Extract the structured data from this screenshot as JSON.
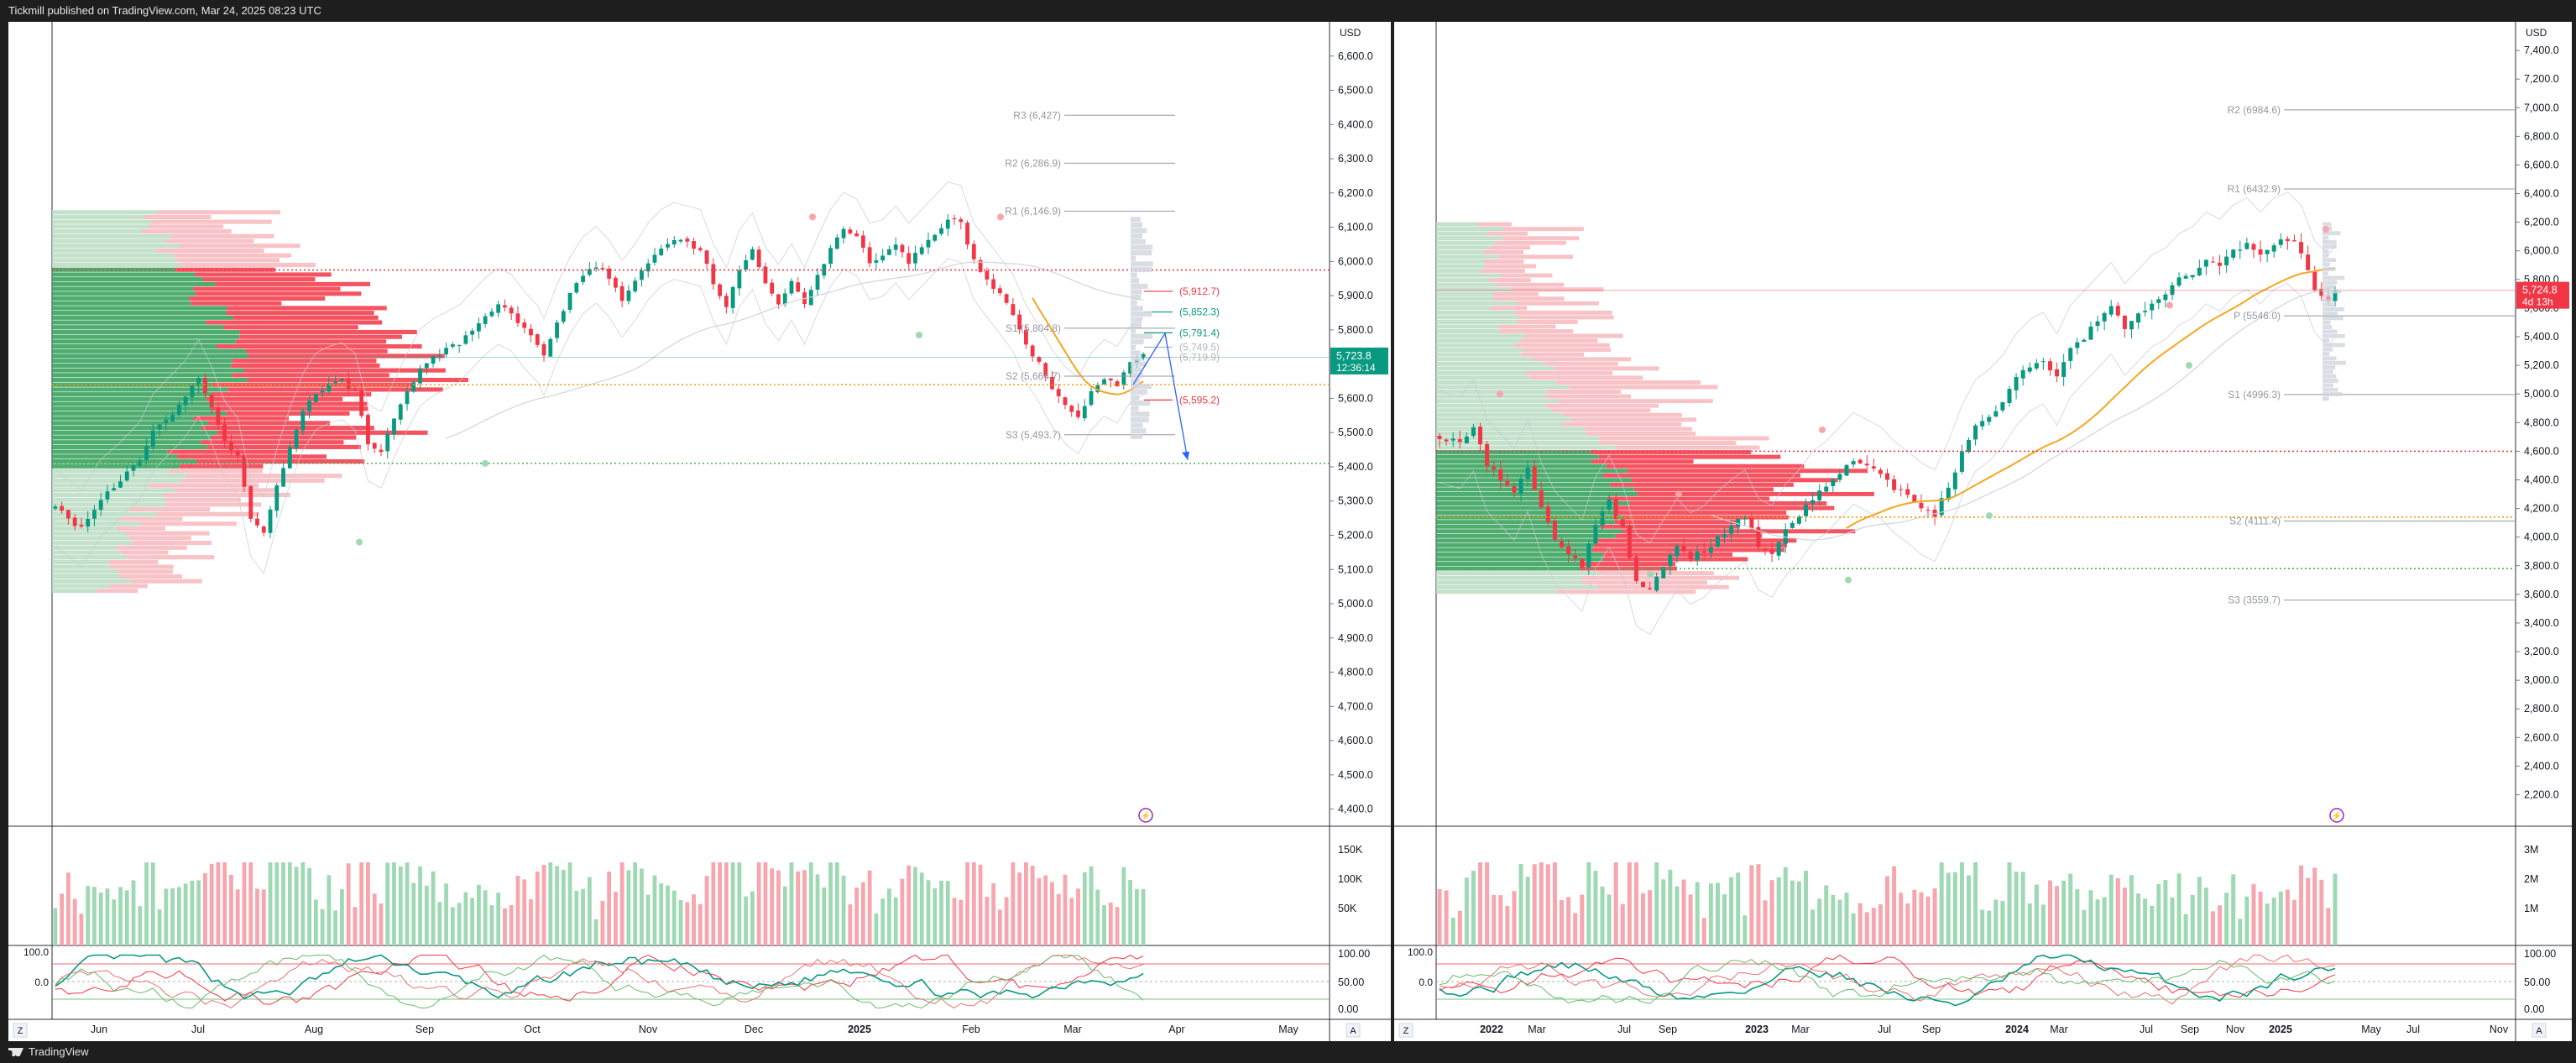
{
  "header": {
    "publisher_text": "Tickmill published on TradingView.com, Mar 24, 2025 08:23 UTC"
  },
  "footer": {
    "brand": "TradingView"
  },
  "panels": {
    "left": {
      "currency": "USD",
      "price_badge": {
        "price": "5,723.8",
        "countdown": "12:36:14",
        "color": "#089981"
      },
      "x_ticks": [
        "Jun",
        "Jul",
        "Aug",
        "Sep",
        "Oct",
        "Nov",
        "Dec",
        "2025",
        "Feb",
        "Mar",
        "Apr",
        "May"
      ],
      "corner_left": "Z",
      "corner_right": "A",
      "volume_ticks": [
        "150K",
        "100K",
        "50K"
      ],
      "osc_ticks": [
        "100.00",
        "50.00",
        "0.00"
      ],
      "osc_left_labels": [
        "100.0",
        "0.0"
      ]
    },
    "right": {
      "currency": "USD",
      "price_badge": {
        "price": "5,724.8",
        "countdown": "4d 13h",
        "color": "#f23645"
      },
      "x_ticks": [
        "2022",
        "Mar",
        "Jul",
        "Sep",
        "2023",
        "Mar",
        "Jul",
        "Sep",
        "2024",
        "Mar",
        "Jul",
        "Sep",
        "Nov",
        "2025",
        "May",
        "Jul",
        "Nov"
      ],
      "corner_left": "Z",
      "corner_right": "A",
      "volume_ticks": [
        "3M",
        "2M",
        "1M"
      ],
      "osc_ticks": [
        "100.00",
        "50.00",
        "0.00"
      ],
      "osc_left_labels": [
        "100.0",
        "0.0"
      ]
    }
  },
  "chart_data": [
    {
      "type": "candlestick",
      "panel": "left",
      "timeframe": "daily",
      "y_axis_label": "USD",
      "ylim": [
        4350,
        6700
      ],
      "y_ticks": [
        "6,600.0",
        "6,500.0",
        "6,400.0",
        "6,300.0",
        "6,200.0",
        "6,100.0",
        "6,000.0",
        "5,900.0",
        "5,800.0",
        "5,700.0",
        "5,600.0",
        "5,500.0",
        "5,400.0",
        "5,300.0",
        "5,200.0",
        "5,100.0",
        "5,000.0",
        "4,900.0",
        "4,800.0",
        "4,700.0",
        "4,600.0",
        "4,500.0",
        "4,400.0"
      ],
      "x_ticks": [
        "Jun",
        "Jul",
        "Aug",
        "Sep",
        "Oct",
        "Nov",
        "Dec",
        "2025",
        "Feb",
        "Mar",
        "Apr",
        "May"
      ],
      "last_price": 5723.8,
      "pivot_levels": [
        {
          "label": "R3 (6,427)",
          "value": 6427
        },
        {
          "label": "R2 (6,286.9)",
          "value": 6286.9
        },
        {
          "label": "R1 (6,146.9)",
          "value": 6146.9
        },
        {
          "label": "S1 (5,804.8)",
          "value": 5804.8
        },
        {
          "label": "S2 (5,664.7)",
          "value": 5664.7
        },
        {
          "label": "S3 (5,493.7)",
          "value": 5493.7
        }
      ],
      "level_labels": [
        {
          "label": "(5,912.7)",
          "value": 5912.7,
          "color": "#f23645"
        },
        {
          "label": "(5,852.3)",
          "value": 5852.3,
          "color": "#089981"
        },
        {
          "label": "(5,791.4)",
          "value": 5791.4,
          "color": "#089981"
        },
        {
          "label": "(5,749.5)",
          "value": 5749.5,
          "color": "#b2b5be"
        },
        {
          "label": "(5,719.9)",
          "value": 5719.9,
          "color": "#b2b5be"
        },
        {
          "label": "(5,595.2)",
          "value": 5595.2,
          "color": "#f23645"
        }
      ],
      "horizontal_lines": [
        {
          "value": 5975,
          "color": "#f23645",
          "style": "dotted"
        },
        {
          "value": 5640,
          "color": "#ff9800",
          "style": "dotted"
        },
        {
          "value": 5410,
          "color": "#4caf50",
          "style": "dotted"
        },
        {
          "value": 5720,
          "color": "#089981",
          "style": "solid"
        }
      ],
      "price_path": [
        [
          0,
          5280
        ],
        [
          4,
          5220
        ],
        [
          7,
          5310
        ],
        [
          10,
          5360
        ],
        [
          13,
          5420
        ],
        [
          15,
          5500
        ],
        [
          18,
          5560
        ],
        [
          20,
          5600
        ],
        [
          22,
          5660
        ],
        [
          24,
          5580
        ],
        [
          26,
          5480
        ],
        [
          28,
          5430
        ],
        [
          30,
          5250
        ],
        [
          32,
          5200
        ],
        [
          34,
          5340
        ],
        [
          36,
          5460
        ],
        [
          38,
          5560
        ],
        [
          40,
          5620
        ],
        [
          42,
          5640
        ],
        [
          44,
          5650
        ],
        [
          46,
          5620
        ],
        [
          48,
          5470
        ],
        [
          50,
          5450
        ],
        [
          52,
          5540
        ],
        [
          54,
          5620
        ],
        [
          56,
          5690
        ],
        [
          58,
          5720
        ],
        [
          60,
          5740
        ],
        [
          62,
          5760
        ],
        [
          64,
          5800
        ],
        [
          66,
          5840
        ],
        [
          68,
          5870
        ],
        [
          70,
          5850
        ],
        [
          72,
          5800
        ],
        [
          74,
          5760
        ],
        [
          75,
          5720
        ],
        [
          77,
          5820
        ],
        [
          79,
          5900
        ],
        [
          81,
          5960
        ],
        [
          83,
          5990
        ],
        [
          85,
          5950
        ],
        [
          87,
          5890
        ],
        [
          89,
          5940
        ],
        [
          91,
          6000
        ],
        [
          93,
          6040
        ],
        [
          95,
          6060
        ],
        [
          97,
          6050
        ],
        [
          99,
          6040
        ],
        [
          101,
          5940
        ],
        [
          103,
          5870
        ],
        [
          105,
          5980
        ],
        [
          107,
          6030
        ],
        [
          109,
          5930
        ],
        [
          111,
          5880
        ],
        [
          113,
          5940
        ],
        [
          115,
          5870
        ],
        [
          117,
          5960
        ],
        [
          119,
          6040
        ],
        [
          121,
          6090
        ],
        [
          123,
          6070
        ],
        [
          125,
          6000
        ],
        [
          127,
          6010
        ],
        [
          129,
          6050
        ],
        [
          131,
          6000
        ],
        [
          133,
          6040
        ],
        [
          135,
          6080
        ],
        [
          137,
          6120
        ],
        [
          139,
          6110
        ],
        [
          141,
          6000
        ],
        [
          143,
          5950
        ],
        [
          145,
          5900
        ],
        [
          147,
          5850
        ],
        [
          149,
          5760
        ],
        [
          151,
          5700
        ],
        [
          153,
          5630
        ],
        [
          155,
          5580
        ],
        [
          157,
          5550
        ],
        [
          159,
          5620
        ],
        [
          161,
          5660
        ],
        [
          163,
          5640
        ],
        [
          165,
          5700
        ],
        [
          167,
          5723
        ]
      ],
      "price_days": 168
    },
    {
      "type": "candlestick",
      "panel": "right",
      "timeframe": "weekly",
      "y_axis_label": "USD",
      "ylim": [
        1980,
        7600
      ],
      "y_ticks": [
        "7,400.0",
        "7,200.0",
        "7,000.0",
        "6,800.0",
        "6,600.0",
        "6,400.0",
        "6,200.0",
        "6,000.0",
        "5,800.0",
        "5,600.0",
        "5,400.0",
        "5,200.0",
        "5,000.0",
        "4,800.0",
        "4,600.0",
        "4,400.0",
        "4,200.0",
        "4,000.0",
        "3,800.0",
        "3,600.0",
        "3,400.0",
        "3,200.0",
        "3,000.0",
        "2,800.0",
        "2,600.0",
        "2,400.0",
        "2,200.0"
      ],
      "x_ticks": [
        "2022",
        "Mar",
        "Jul",
        "Sep",
        "2023",
        "Mar",
        "Jul",
        "Sep",
        "2024",
        "Mar",
        "Jul",
        "Sep",
        "Nov",
        "2025",
        "May",
        "Jul",
        "Nov"
      ],
      "last_price": 5724.8,
      "pivot_levels": [
        {
          "label": "R2 (6984.6)",
          "value": 6984.6
        },
        {
          "label": "R1 (6432.9)",
          "value": 6432.9
        },
        {
          "label": "P (5546.0)",
          "value": 5546.0
        },
        {
          "label": "S1 (4996.3)",
          "value": 4996.3
        },
        {
          "label": "S2 (4111.4)",
          "value": 4111.4
        },
        {
          "label": "S3 (3559.7)",
          "value": 3559.7
        }
      ],
      "horizontal_lines": [
        {
          "value": 4600,
          "color": "#f23645",
          "style": "dotted"
        },
        {
          "value": 4140,
          "color": "#ff9800",
          "style": "dotted"
        },
        {
          "value": 3780,
          "color": "#4caf50",
          "style": "dotted"
        },
        {
          "value": 5724,
          "color": "#f23645",
          "style": "solid"
        }
      ],
      "price_path": [
        [
          0,
          4700
        ],
        [
          3,
          4660
        ],
        [
          5,
          4780
        ],
        [
          7,
          4500
        ],
        [
          9,
          4400
        ],
        [
          11,
          4300
        ],
        [
          13,
          4500
        ],
        [
          15,
          4200
        ],
        [
          17,
          4000
        ],
        [
          19,
          3900
        ],
        [
          21,
          3800
        ],
        [
          23,
          4100
        ],
        [
          25,
          4250
        ],
        [
          27,
          4050
        ],
        [
          29,
          3700
        ],
        [
          31,
          3640
        ],
        [
          33,
          3800
        ],
        [
          35,
          3950
        ],
        [
          37,
          3850
        ],
        [
          39,
          3900
        ],
        [
          41,
          4000
        ],
        [
          43,
          4080
        ],
        [
          45,
          4150
        ],
        [
          47,
          3950
        ],
        [
          49,
          3900
        ],
        [
          51,
          4050
        ],
        [
          53,
          4150
        ],
        [
          55,
          4280
        ],
        [
          57,
          4350
        ],
        [
          59,
          4450
        ],
        [
          61,
          4550
        ],
        [
          63,
          4500
        ],
        [
          65,
          4450
        ],
        [
          67,
          4350
        ],
        [
          69,
          4280
        ],
        [
          71,
          4200
        ],
        [
          73,
          4150
        ],
        [
          75,
          4350
        ],
        [
          77,
          4600
        ],
        [
          79,
          4780
        ],
        [
          81,
          4850
        ],
        [
          83,
          4950
        ],
        [
          85,
          5100
        ],
        [
          87,
          5200
        ],
        [
          89,
          5250
        ],
        [
          91,
          5100
        ],
        [
          93,
          5300
        ],
        [
          95,
          5400
        ],
        [
          97,
          5500
        ],
        [
          99,
          5600
        ],
        [
          101,
          5450
        ],
        [
          103,
          5550
        ],
        [
          105,
          5650
        ],
        [
          107,
          5700
        ],
        [
          109,
          5800
        ],
        [
          111,
          5850
        ],
        [
          113,
          5950
        ],
        [
          115,
          5900
        ],
        [
          117,
          6000
        ],
        [
          119,
          6050
        ],
        [
          121,
          5950
        ],
        [
          123,
          6050
        ],
        [
          125,
          6090
        ],
        [
          127,
          6000
        ],
        [
          129,
          5750
        ],
        [
          131,
          5650
        ],
        [
          132,
          5724
        ]
      ],
      "price_weeks": 133
    }
  ]
}
